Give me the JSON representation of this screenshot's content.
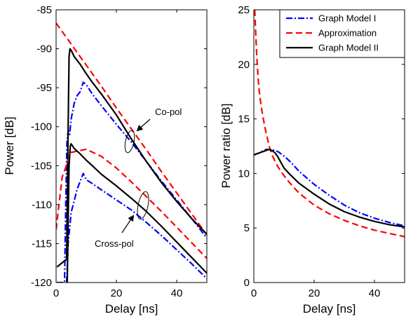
{
  "chart_data": [
    {
      "type": "line",
      "xlabel": "Delay [ns]",
      "ylabel": "Power [dB]",
      "xlim": [
        0,
        50
      ],
      "ylim": [
        -120,
        -85
      ],
      "xticks": [
        0,
        20,
        40
      ],
      "yticks": [
        -120,
        -115,
        -110,
        -105,
        -100,
        -95,
        -90,
        -85
      ],
      "grid": false,
      "annotations": [
        "Co-pol",
        "Cross-pol"
      ],
      "series": [
        {
          "name": "Graph Model I",
          "group": "Co-pol",
          "style": "dashdot",
          "color": "#0000ff",
          "x": [
            0.3,
            2.8,
            3.2,
            3.6,
            4.0,
            4.5,
            5.0,
            5.5,
            6.0,
            7.0,
            8.0,
            9.0,
            10.0,
            12.0,
            15.0,
            20.0,
            25.0,
            30.0,
            35.0,
            40.0,
            45.0,
            50.0
          ],
          "y": [
            -120,
            -120,
            -110,
            -102,
            -100.5,
            -101,
            -99,
            -98,
            -97,
            -96,
            -95.5,
            -94.3,
            -94.6,
            -95.8,
            -97.3,
            -99.7,
            -102.0,
            -104.5,
            -107.0,
            -109.4,
            -111.8,
            -114.3
          ]
        },
        {
          "name": "Approximation",
          "group": "Co-pol",
          "style": "dashed",
          "color": "#ff0000",
          "x": [
            0,
            5,
            10,
            15,
            20,
            25,
            30,
            35,
            40,
            45,
            50
          ],
          "y": [
            -86.7,
            -89.4,
            -92.1,
            -94.8,
            -97.6,
            -100.3,
            -103.0,
            -105.8,
            -108.5,
            -111.2,
            -113.9
          ]
        },
        {
          "name": "Graph Model II",
          "group": "Co-pol",
          "style": "solid",
          "color": "#000000",
          "x": [
            0.3,
            3.5,
            4.0,
            4.3,
            4.6,
            5.0,
            6.0,
            8.0,
            10.0,
            12.0,
            15.0,
            20.0,
            25.0,
            30.0,
            35.0,
            40.0,
            45.0,
            50.0
          ],
          "y": [
            -118,
            -117,
            -100,
            -91,
            -90,
            -90.2,
            -91.0,
            -92.0,
            -93.2,
            -94.3,
            -95.8,
            -98.5,
            -101.6,
            -104.5,
            -107.2,
            -109.6,
            -111.8,
            -113.8
          ]
        },
        {
          "name": "Graph Model I",
          "group": "Cross-pol",
          "style": "dashdot",
          "color": "#0000ff",
          "x": [
            3.5,
            4.0,
            4.5,
            5.0,
            6.0,
            7.0,
            8.0,
            9.0,
            10.0,
            12.0,
            15.0,
            20.0,
            25.0,
            30.0,
            35.0,
            40.0,
            45.0,
            50.0
          ],
          "y": [
            -120,
            -115,
            -113,
            -111,
            -109.5,
            -108,
            -107,
            -106,
            -106.8,
            -107.3,
            -108.1,
            -109.4,
            -110.7,
            -112.3,
            -114.0,
            -115.8,
            -117.6,
            -119.5
          ]
        },
        {
          "name": "Approximation",
          "group": "Cross-pol",
          "style": "dashed",
          "color": "#ff0000",
          "x": [
            0,
            2,
            5,
            10,
            15,
            20,
            25,
            30,
            35,
            40,
            45,
            50
          ],
          "y": [
            -113.2,
            -106.5,
            -103.3,
            -102.9,
            -103.8,
            -105.3,
            -107.1,
            -109.0,
            -110.9,
            -112.9,
            -114.9,
            -116.9
          ]
        },
        {
          "name": "Graph Model II",
          "group": "Cross-pol",
          "style": "solid",
          "color": "#000000",
          "x": [
            3.7,
            4.0,
            4.3,
            4.7,
            5.0,
            6.0,
            8.0,
            10.0,
            12.0,
            15.0,
            20.0,
            25.0,
            30.0,
            35.0,
            40.0,
            45.0,
            50.0
          ],
          "y": [
            -120,
            -112,
            -105,
            -102.5,
            -102.2,
            -102.8,
            -103.5,
            -104.3,
            -105.0,
            -106.1,
            -107.6,
            -109.2,
            -110.9,
            -112.8,
            -114.8,
            -116.8,
            -118.8
          ]
        }
      ]
    },
    {
      "type": "line",
      "xlabel": "Delay [ns]",
      "ylabel": "Power ratio [dB]",
      "xlim": [
        0,
        50
      ],
      "ylim": [
        0,
        25
      ],
      "xticks": [
        0,
        20,
        40
      ],
      "yticks": [
        0,
        5,
        10,
        15,
        20,
        25
      ],
      "grid": false,
      "legend_position": "top-right",
      "legend": [
        "Graph Model I",
        "Approximation",
        "Graph Model II"
      ],
      "series": [
        {
          "name": "Graph Model I",
          "style": "dashdot",
          "color": "#0000ff",
          "x": [
            0,
            2,
            4,
            6,
            8,
            10,
            12,
            15,
            20,
            25,
            30,
            35,
            40,
            45,
            50
          ],
          "y": [
            11.7,
            11.9,
            12.2,
            12.2,
            12.0,
            11.6,
            11.1,
            10.2,
            9.0,
            8.0,
            7.1,
            6.4,
            5.9,
            5.5,
            5.2
          ]
        },
        {
          "name": "Approximation",
          "style": "dashed",
          "color": "#ff0000",
          "x": [
            0.3,
            0.6,
            1.0,
            1.5,
            2.0,
            3.0,
            4.0,
            5.0,
            6.0,
            8.0,
            10.0,
            12.0,
            15.0,
            20.0,
            25.0,
            30.0,
            35.0,
            40.0,
            45.0,
            50.0
          ],
          "y": [
            25,
            23.0,
            20.6,
            18.4,
            17.0,
            15.2,
            13.8,
            12.6,
            11.7,
            10.6,
            9.8,
            9.1,
            8.2,
            7.1,
            6.3,
            5.7,
            5.2,
            4.8,
            4.5,
            4.2
          ]
        },
        {
          "name": "Graph Model II",
          "style": "solid",
          "color": "#000000",
          "x": [
            0,
            2,
            4,
            5,
            6,
            7,
            8,
            10,
            12,
            15,
            20,
            25,
            30,
            35,
            40,
            45,
            50
          ],
          "y": [
            11.7,
            11.9,
            12.1,
            12.2,
            12.1,
            11.9,
            11.5,
            10.5,
            9.9,
            9.1,
            8.1,
            7.2,
            6.5,
            6.0,
            5.6,
            5.3,
            5.1
          ]
        }
      ]
    }
  ]
}
